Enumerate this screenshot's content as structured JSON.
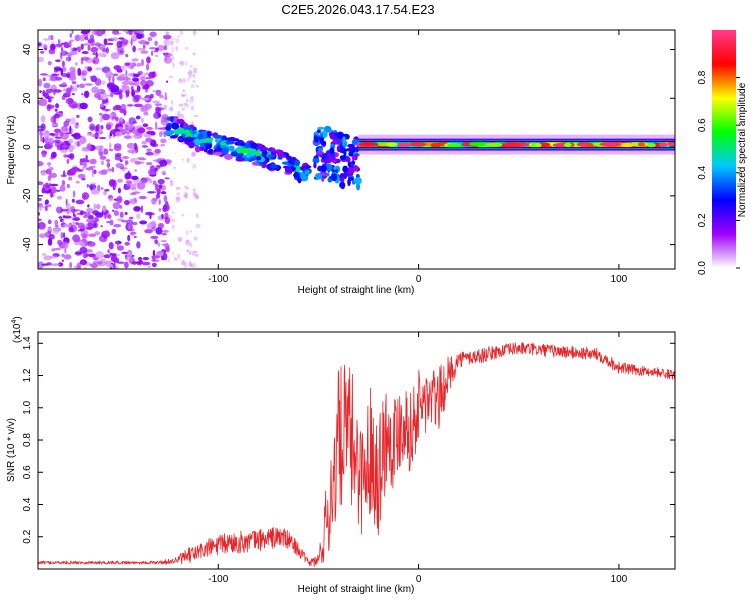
{
  "chart_data": [
    {
      "type": "heatmap",
      "title": "C2E5.2026.043.17.54.E23",
      "xlabel": "Height of straight line (km)",
      "ylabel": "Frequency (Hz)",
      "xlim": [
        -190,
        128
      ],
      "ylim": [
        -50,
        48
      ],
      "xticks": [
        -100,
        0,
        100
      ],
      "yticks": [
        -40,
        -20,
        0,
        20,
        40
      ],
      "xtick_labels": [
        "-100",
        "0",
        "100"
      ],
      "ytick_labels": [
        "-40",
        "-20",
        "0",
        "20",
        "40"
      ],
      "colorbar": {
        "label": "Normalized spectral amplitude",
        "range": [
          0,
          1
        ],
        "ticks": [
          0,
          0.2,
          0.4,
          0.6,
          0.8
        ],
        "tick_labels": [
          "0.0",
          "0.2",
          "0.4",
          "0.6",
          "0.8"
        ],
        "colormap": [
          "#ffffff",
          "#a000ff",
          "#0000ff",
          "#00c8ff",
          "#00ff00",
          "#ffff00",
          "#ff0000",
          "#ff3c8c"
        ]
      },
      "regions": [
        {
          "name": "noise",
          "x_range": [
            -190,
            -125
          ],
          "freq_range": [
            -50,
            48
          ],
          "amplitude": 0.1
        },
        {
          "name": "chirp",
          "x": [
            -125,
            -110,
            -95,
            -80,
            -65,
            -55
          ],
          "freq": [
            9,
            3,
            0,
            -3,
            -7,
            -12
          ],
          "amplitude": 0.45
        },
        {
          "name": "burst",
          "x_range": [
            -52,
            -30
          ],
          "freq_range": [
            -20,
            12
          ],
          "amplitude": 0.3
        },
        {
          "name": "tone",
          "x_range": [
            -30,
            128
          ],
          "freq": 1,
          "amplitude": 0.8
        }
      ]
    },
    {
      "type": "line",
      "title": "",
      "xlabel": "Height of straight line (km)",
      "ylabel": "SNR (10 * v/v)",
      "y_scale_label": "(x10",
      "y_scale_exp": "4",
      "y_scale_suffix": ")",
      "xlim": [
        -190,
        128
      ],
      "ylim": [
        0.0,
        1.47
      ],
      "xticks": [
        -100,
        0,
        100
      ],
      "yticks": [
        0.2,
        0.4,
        0.6,
        0.8,
        1.0,
        1.2,
        1.4
      ],
      "xtick_labels": [
        "-100",
        "0",
        "100"
      ],
      "ytick_labels": [
        "0.2",
        "0.4",
        "0.6",
        "0.8",
        "1.0",
        "1.2",
        "1.4"
      ],
      "color": "#e8262a",
      "series": [
        {
          "name": "SNR",
          "x": [
            -190,
            -170,
            -150,
            -130,
            -122,
            -115,
            -105,
            -95,
            -85,
            -75,
            -68,
            -62,
            -55,
            -50,
            -45,
            -40,
            -36,
            -32,
            -28,
            -24,
            -20,
            -16,
            -12,
            -8,
            -4,
            0,
            5,
            10,
            15,
            20,
            30,
            40,
            50,
            60,
            70,
            80,
            90,
            100,
            110,
            120,
            128
          ],
          "values": [
            0.04,
            0.04,
            0.04,
            0.04,
            0.05,
            0.08,
            0.13,
            0.16,
            0.17,
            0.19,
            0.2,
            0.15,
            0.04,
            0.05,
            0.35,
            0.8,
            0.85,
            0.75,
            0.55,
            0.75,
            0.6,
            0.85,
            0.8,
            0.95,
            0.85,
            1.0,
            1.05,
            1.05,
            1.2,
            1.3,
            1.32,
            1.35,
            1.37,
            1.36,
            1.35,
            1.34,
            1.33,
            1.25,
            1.23,
            1.22,
            1.2
          ],
          "noise": [
            0.01,
            0.01,
            0.01,
            0.01,
            0.02,
            0.05,
            0.06,
            0.07,
            0.07,
            0.07,
            0.07,
            0.05,
            0.02,
            0.05,
            0.3,
            0.45,
            0.45,
            0.45,
            0.35,
            0.4,
            0.4,
            0.35,
            0.3,
            0.3,
            0.25,
            0.25,
            0.2,
            0.2,
            0.12,
            0.05,
            0.05,
            0.04,
            0.04,
            0.04,
            0.04,
            0.04,
            0.04,
            0.04,
            0.03,
            0.03,
            0.03
          ]
        }
      ]
    }
  ]
}
